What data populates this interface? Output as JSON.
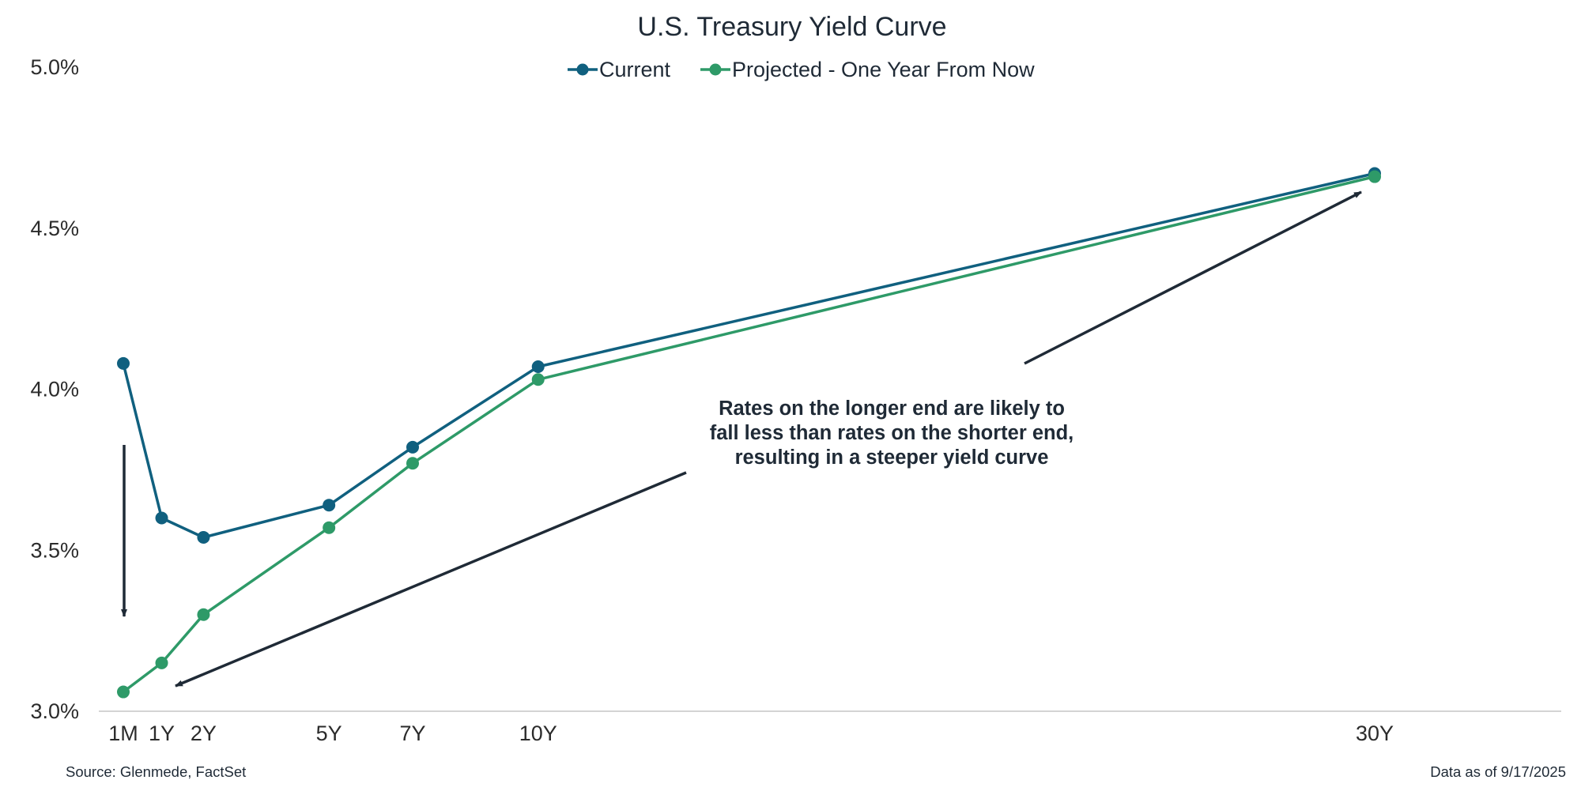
{
  "chart_data": {
    "type": "line",
    "title": "U.S. Treasury Yield Curve",
    "x_unit": "years to maturity",
    "x": [
      0.083,
      1,
      2,
      5,
      7,
      10,
      30
    ],
    "x_tick_labels": [
      "1M",
      "1Y",
      "2Y",
      "5Y",
      "7Y",
      "10Y",
      "30Y"
    ],
    "xlim": [
      0.083,
      30
    ],
    "y_unit": "%",
    "ylim": [
      3.0,
      5.0
    ],
    "y_ticks": [
      "3.0%",
      "3.5%",
      "4.0%",
      "4.5%",
      "5.0%"
    ],
    "y_tick_values": [
      3.0,
      3.5,
      4.0,
      4.5,
      5.0
    ],
    "grid": false,
    "legend_position": "top-center",
    "series": [
      {
        "name": "Current",
        "color": "#10607f",
        "values": [
          4.08,
          3.6,
          3.54,
          3.64,
          3.82,
          4.07,
          4.67
        ]
      },
      {
        "name": "Projected - One Year From Now",
        "color": "#2e9a68",
        "values": [
          3.06,
          3.15,
          3.3,
          3.57,
          3.77,
          4.03,
          4.66
        ]
      }
    ],
    "annotation": {
      "lines": [
        "Rates on the longer end are likely to",
        "fall less than rates on the shorter end,",
        "resulting in a steeper yield curve"
      ]
    }
  },
  "footer": {
    "source": "Source: Glenmede, FactSet",
    "date": "Data as of 9/17/2025"
  }
}
